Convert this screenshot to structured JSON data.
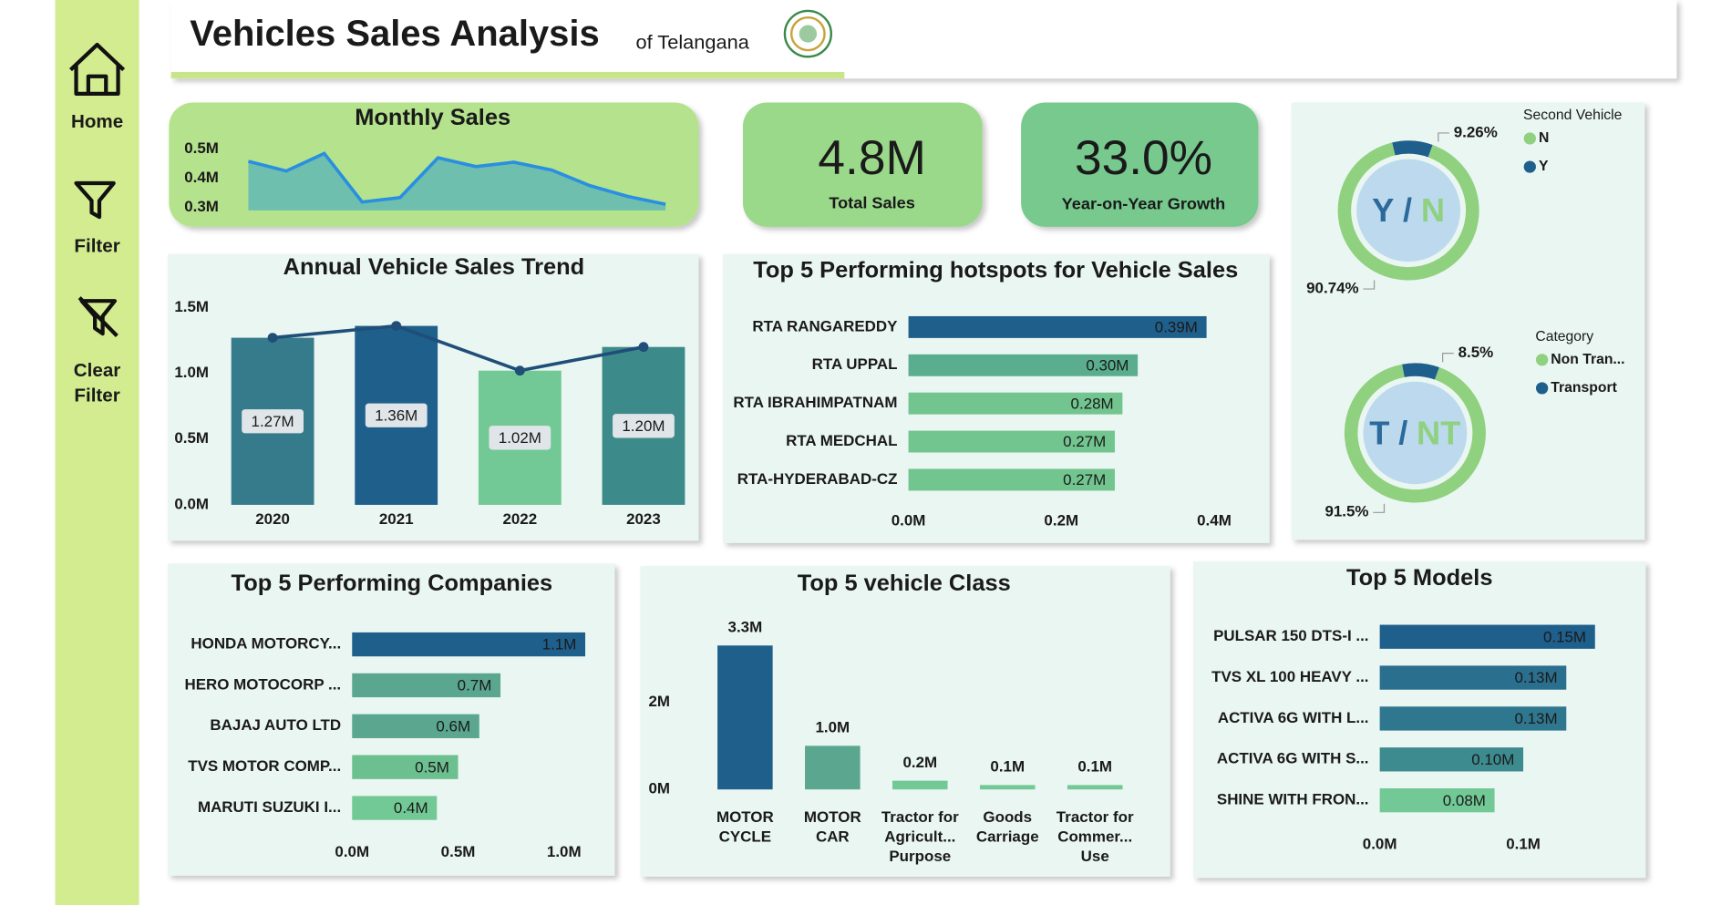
{
  "header": {
    "title": "Vehicles Sales Analysis",
    "subtitle": "of Telangana"
  },
  "sidebar": {
    "items": [
      "Home",
      "Filter",
      "Clear Filter"
    ]
  },
  "kpis": [
    {
      "value": "4.8M",
      "label": "Total Sales"
    },
    {
      "value": "33.0%",
      "label": "Year-on-Year Growth"
    }
  ],
  "chart_data": [
    {
      "type": "area",
      "title": "Monthly Sales",
      "line_color": "#2a8fe0",
      "fill_color": "#6fbfae",
      "values": [
        458000,
        425000,
        485000,
        319000,
        334000,
        470000,
        440000,
        455000,
        428000,
        375000,
        338000,
        311000
      ],
      "ylim": [
        290000,
        510000
      ],
      "yticks": [
        {
          "value": 300000,
          "label": "0.3M"
        },
        {
          "value": 400000,
          "label": "0.4M"
        },
        {
          "value": 500000,
          "label": "0.5M"
        }
      ]
    },
    {
      "type": "combo",
      "title": "Annual Vehicle Sales Trend",
      "categories": [
        "2020",
        "2021",
        "2022",
        "2023"
      ],
      "values": [
        1270000,
        1360000,
        1020000,
        1200000
      ],
      "value_labels": [
        "1.27M",
        "1.36M",
        "1.02M",
        "1.20M"
      ],
      "colors": [
        "#367b8c",
        "#1f5f8b",
        "#72c995",
        "#3d8a8a"
      ],
      "line_color": "#1f4e79",
      "ylim": [
        0,
        1500000
      ],
      "yticks": [
        {
          "value": 0,
          "label": "0.0M"
        },
        {
          "value": 500000,
          "label": "0.5M"
        },
        {
          "value": 1000000,
          "label": "1.0M"
        },
        {
          "value": 1500000,
          "label": "1.5M"
        }
      ]
    },
    {
      "type": "hbar",
      "title": "Top 5 Performing hotspots for Vehicle Sales",
      "categories": [
        "RTA RANGAREDDY",
        "RTA UPPAL",
        "RTA IBRAHIMPATNAM",
        "RTA MEDCHAL",
        "RTA-HYDERABAD-CZ"
      ],
      "values": [
        390000,
        300000,
        280000,
        270000,
        270000
      ],
      "value_labels": [
        "0.39M",
        "0.30M",
        "0.28M",
        "0.27M",
        "0.27M"
      ],
      "colors": [
        "#1f5f8b",
        "#5aae8f",
        "#72c58f",
        "#72c58f",
        "#72c58f"
      ],
      "xlim": [
        0,
        400000
      ],
      "xticks": [
        {
          "value": 0,
          "label": "0.0M"
        },
        {
          "value": 200000,
          "label": "0.2M"
        },
        {
          "value": 400000,
          "label": "0.4M"
        }
      ]
    },
    {
      "type": "donut",
      "legend_title": "Second Vehicle",
      "center_label": [
        "Y",
        "/",
        "N"
      ],
      "categories": [
        "N",
        "Y"
      ],
      "values": [
        90.74,
        9.26
      ],
      "value_labels": [
        "90.74%",
        "9.26%"
      ],
      "colors": [
        "#8fd17f",
        "#1f5f8b"
      ]
    },
    {
      "type": "donut",
      "legend_title": "Category",
      "center_label": [
        "T",
        "/",
        "NT"
      ],
      "categories": [
        "Non Tran...",
        "Transport"
      ],
      "values": [
        91.5,
        8.5
      ],
      "value_labels": [
        "91.5%",
        "8.5%"
      ],
      "colors": [
        "#8fd17f",
        "#1f5f8b"
      ]
    },
    {
      "type": "hbar",
      "title": "Top 5 Performing Companies",
      "categories": [
        "HONDA MOTORCY...",
        "HERO MOTOCORP ...",
        "BAJAJ AUTO LTD",
        "TVS MOTOR COMP...",
        "MARUTI SUZUKI I..."
      ],
      "values": [
        1100000,
        700000,
        600000,
        500000,
        400000
      ],
      "value_labels": [
        "1.1M",
        "0.7M",
        "0.6M",
        "0.5M",
        "0.4M"
      ],
      "colors": [
        "#1f5f8b",
        "#5aa68f",
        "#5aa68f",
        "#6cbf8f",
        "#72c995"
      ],
      "xlim": [
        0,
        1000000
      ],
      "xticks": [
        {
          "value": 0,
          "label": "0.0M"
        },
        {
          "value": 500000,
          "label": "0.5M"
        },
        {
          "value": 1000000,
          "label": "1.0M"
        }
      ]
    },
    {
      "type": "vbar",
      "title": "Top 5 vehicle Class",
      "categories": [
        "MOTOR CYCLE",
        "MOTOR CAR",
        "Tractor for Agricult... Purpose",
        "Goods Carriage",
        "Tractor for Commer... Use"
      ],
      "values": [
        3300000,
        1000000,
        200000,
        100000,
        100000
      ],
      "value_labels": [
        "3.3M",
        "1.0M",
        "0.2M",
        "0.1M",
        "0.1M"
      ],
      "colors": [
        "#1f5f8b",
        "#5aa68f",
        "#72c995",
        "#72c995",
        "#72c995"
      ],
      "ylim": [
        0,
        3500000
      ],
      "yticks": [
        {
          "value": 0,
          "label": "0M"
        },
        {
          "value": 2000000,
          "label": "2M"
        }
      ]
    },
    {
      "type": "hbar",
      "title": "Top 5 Models",
      "categories": [
        "PULSAR 150 DTS-I ...",
        "TVS XL 100 HEAVY ...",
        "ACTIVA 6G WITH L...",
        "ACTIVA 6G WITH S...",
        "SHINE WITH FRON..."
      ],
      "values": [
        150000,
        130000,
        130000,
        100000,
        80000
      ],
      "value_labels": [
        "0.15M",
        "0.13M",
        "0.13M",
        "0.10M",
        "0.08M"
      ],
      "colors": [
        "#1f5f8b",
        "#2b6f8f",
        "#2f778f",
        "#3d8a8f",
        "#72c995"
      ],
      "xlim": [
        0,
        100000
      ],
      "xticks": [
        {
          "value": 0,
          "label": "0.0M"
        },
        {
          "value": 100000,
          "label": "0.1M"
        }
      ]
    }
  ]
}
